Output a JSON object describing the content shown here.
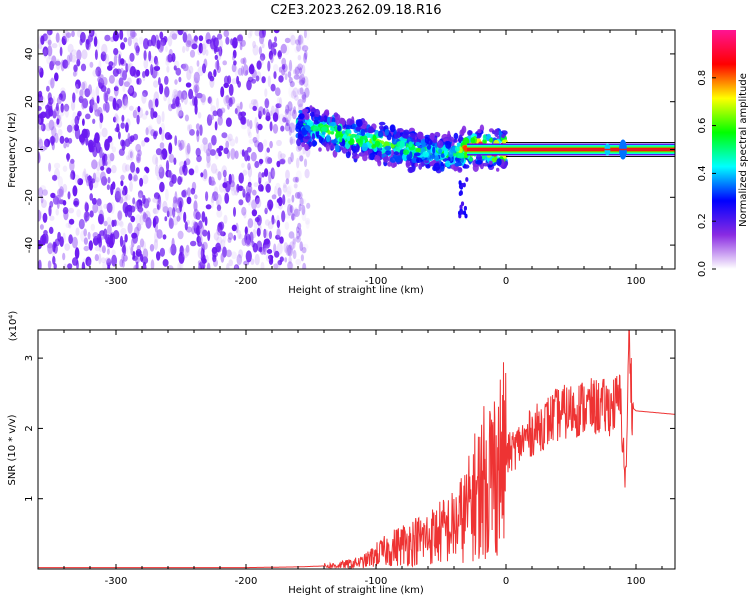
{
  "title": "C2E3.2023.262.09.18.R16",
  "colors": {
    "snr_line": "#ee3333",
    "signal_line": "#dd2222",
    "noise_speckle": "#7a2cf0",
    "axis": "#000000"
  },
  "chart_data": [
    {
      "type": "heatmap",
      "title": "C2E3.2023.262.09.18.R16",
      "xlabel": "Height of straight line (km)",
      "ylabel": "Frequency (Hz)",
      "xlim": [
        -360,
        130
      ],
      "ylim": [
        -50,
        50
      ],
      "xticks": [
        -300,
        -200,
        -100,
        0,
        100
      ],
      "yticks": [
        -40,
        -20,
        0,
        20,
        40
      ],
      "colorbar": {
        "label": "Normalized spectral amplitude",
        "range": [
          0,
          1
        ],
        "ticks": [
          "0.0",
          "0.2",
          "0.4",
          "0.6",
          "0.8"
        ],
        "colormap": [
          "#ffffff",
          "#8a2be2",
          "#0000ff",
          "#00ffff",
          "#00ff00",
          "#ffff00",
          "#ff0000",
          "#ff1493"
        ]
      },
      "noise_region_x": [
        -360,
        -160
      ],
      "trace": {
        "x": [
          -160,
          -140,
          -120,
          -100,
          -80,
          -60,
          -40,
          -30,
          -20,
          -10,
          0,
          50,
          90,
          130
        ],
        "freq": [
          10,
          8,
          5,
          3,
          1,
          -1,
          -2,
          1,
          1,
          0,
          0,
          0,
          0,
          0
        ],
        "amplitude": [
          0.3,
          0.4,
          0.45,
          0.45,
          0.4,
          0.35,
          0.35,
          0.7,
          0.85,
          0.8,
          0.95,
          0.95,
          0.95,
          0.95
        ]
      }
    },
    {
      "type": "line",
      "xlabel": "Height of straight line (km)",
      "ylabel": "SNR (10 * v/v)",
      "yscale_label": "(x10⁴)",
      "xlim": [
        -360,
        130
      ],
      "ylim": [
        0,
        3.4
      ],
      "xticks": [
        -300,
        -200,
        -100,
        0,
        100
      ],
      "yticks": [
        1,
        2,
        3
      ],
      "series": [
        {
          "x": [
            -360,
            -300,
            -200,
            -160,
            -130,
            -110,
            -100,
            -80,
            -60,
            -40,
            -30,
            -20,
            -10,
            0,
            20,
            40,
            60,
            80,
            88,
            92,
            95,
            97,
            100,
            130
          ],
          "y": [
            0.02,
            0.02,
            0.02,
            0.03,
            0.05,
            0.1,
            0.2,
            0.35,
            0.45,
            0.6,
            0.8,
            1.2,
            1.4,
            1.6,
            1.95,
            2.2,
            2.3,
            2.3,
            2.4,
            1.2,
            3.4,
            2.3,
            2.25,
            2.2
          ]
        }
      ]
    }
  ]
}
